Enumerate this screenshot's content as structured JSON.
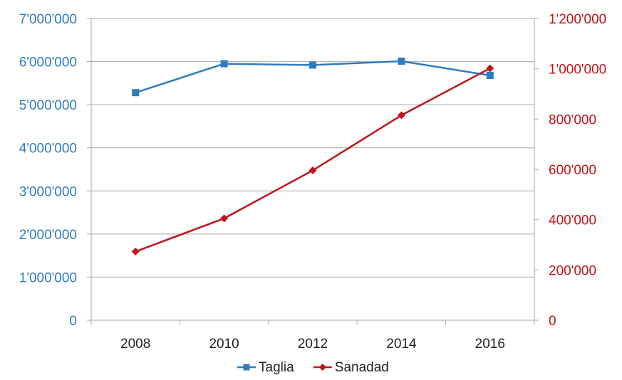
{
  "chart_data": {
    "type": "line",
    "title": "",
    "xlabel": "",
    "categories": [
      "2008",
      "2010",
      "2012",
      "2014",
      "2016"
    ],
    "y_left": {
      "ylim": [
        0,
        7000000
      ],
      "ticks": [
        0,
        1000000,
        2000000,
        3000000,
        4000000,
        5000000,
        6000000,
        7000000
      ],
      "tick_labels": [
        "0",
        "1'000'000",
        "2'000'000",
        "3'000'000",
        "4'000'000",
        "5'000'000",
        "6'000'000",
        "7'000'000"
      ],
      "color": "#2e7bbf"
    },
    "y_right": {
      "ylim": [
        0,
        1200000
      ],
      "ticks": [
        0,
        200000,
        400000,
        600000,
        800000,
        1000000,
        1200000
      ],
      "tick_labels": [
        "0",
        "200'000",
        "400'000",
        "600'000",
        "800'000",
        "1'000'000",
        "1'200'000"
      ],
      "color": "#c0141c"
    },
    "grid": true,
    "legend_position": "bottom",
    "series": [
      {
        "name": "Taglia",
        "axis": "left",
        "marker": "square",
        "color": "#2e7bbf",
        "values": [
          5280000,
          5950000,
          5920000,
          6010000,
          5680000
        ]
      },
      {
        "name": "Sanadad",
        "axis": "right",
        "marker": "diamond",
        "color": "#c0141c",
        "values": [
          273000,
          405000,
          596000,
          815000,
          1002000
        ]
      }
    ]
  }
}
